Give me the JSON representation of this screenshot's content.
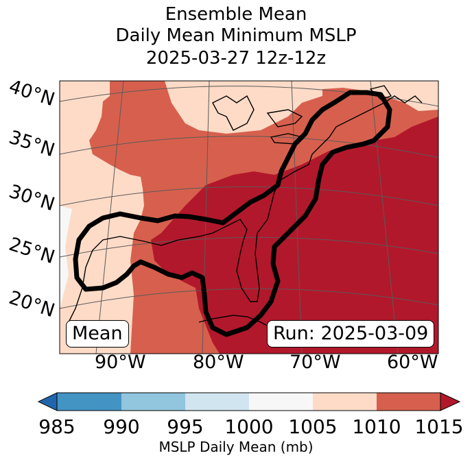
{
  "title": {
    "line1": "Ensemble Mean",
    "line2": "Daily Mean Minimum MSLP",
    "line3": "2025-03-27 12z-12z"
  },
  "map": {
    "lat_labels": [
      "40°N",
      "35°N",
      "30°N",
      "25°N",
      "20°N"
    ],
    "lon_labels": [
      "90°W",
      "80°W",
      "70°W",
      "60°W"
    ],
    "mean_label": "Mean",
    "run_label": "Run: 2025-03-09",
    "colors": {
      "lt1005": "#f7f7f7",
      "b1005_1010": "#fddbc7",
      "b1010_1015": "#d6604d",
      "gt1015": "#b2182b",
      "contour": "#000000",
      "coast": "#000000",
      "grid": "#5a5a5a"
    }
  },
  "colorbar": {
    "ticks": [
      "985",
      "990",
      "995",
      "1000",
      "1005",
      "1010",
      "1015"
    ],
    "label": "MSLP Daily Mean (mb)",
    "colors": [
      "#2166ac",
      "#4393c3",
      "#92c5de",
      "#d1e5f0",
      "#f7f7f7",
      "#fddbc7",
      "#d6604d",
      "#b2182b"
    ]
  }
}
